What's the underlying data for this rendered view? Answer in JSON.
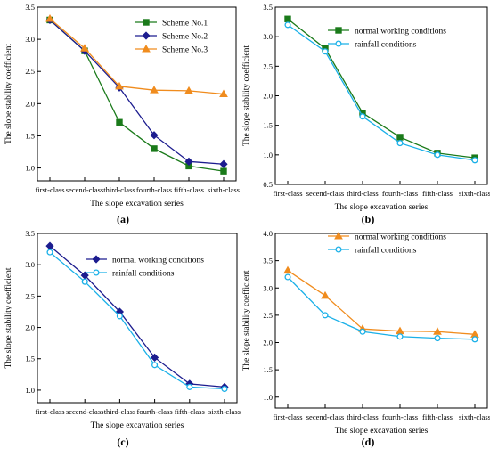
{
  "chart_data": [
    {
      "panel_label": "(a)",
      "type": "line",
      "xlabel": "The slope excavation series",
      "ylabel": "The slope stability coefficient",
      "categories": [
        "first-class",
        "secend-class",
        "third-class",
        "fourth-class",
        "fifth-class",
        "sixth-class"
      ],
      "ylim": [
        0.8,
        3.5
      ],
      "yticks": [
        "1.0",
        "1.5",
        "2.0",
        "2.5",
        "3.0",
        "3.5"
      ],
      "ytick_values": [
        1.0,
        1.5,
        2.0,
        2.5,
        3.0,
        3.5
      ],
      "grid": false,
      "legend_position": "top-right",
      "series": [
        {
          "name": "Scheme No.1",
          "color": "#1a7a1a",
          "marker": "square",
          "values": [
            3.3,
            2.82,
            1.71,
            1.3,
            1.03,
            0.95
          ]
        },
        {
          "name": "Scheme No.2",
          "color": "#1c1c8f",
          "marker": "diamond",
          "values": [
            3.3,
            2.82,
            2.25,
            1.51,
            1.1,
            1.06
          ]
        },
        {
          "name": "Scheme No.3",
          "color": "#f08c1e",
          "marker": "triangle",
          "values": [
            3.32,
            2.86,
            2.27,
            2.21,
            2.2,
            2.15
          ]
        }
      ]
    },
    {
      "panel_label": "(b)",
      "type": "line",
      "xlabel": "The slope excavation series",
      "ylabel": "The slope stability coefficient",
      "categories": [
        "first-class",
        "secend-class",
        "third-class",
        "fourth-class",
        "fifth-class",
        "sixth-class"
      ],
      "ylim": [
        0.5,
        3.5
      ],
      "yticks": [
        "0.5",
        "1.0",
        "1.5",
        "2.0",
        "2.5",
        "3.0",
        "3.5"
      ],
      "ytick_values": [
        0.5,
        1.0,
        1.5,
        2.0,
        2.5,
        3.0,
        3.5
      ],
      "grid": false,
      "legend_position": "top-right",
      "series": [
        {
          "name": "normal working conditions",
          "color": "#1a7a1a",
          "marker": "square",
          "values": [
            3.3,
            2.8,
            1.71,
            1.3,
            1.03,
            0.95
          ]
        },
        {
          "name": "rainfall conditions",
          "color": "#1ab0e8",
          "marker": "circle",
          "values": [
            3.2,
            2.75,
            1.65,
            1.2,
            1.0,
            0.91
          ]
        }
      ]
    },
    {
      "panel_label": "(c)",
      "type": "line",
      "xlabel": "The slope excavation series",
      "ylabel": "The slope stability coefficient",
      "categories": [
        "first-class",
        "secend-class",
        "third-class",
        "fourth-class",
        "fifth-class",
        "sixth-class"
      ],
      "ylim": [
        0.8,
        3.5
      ],
      "yticks": [
        "1.0",
        "1.5",
        "2.0",
        "2.5",
        "3.0",
        "3.5"
      ],
      "ytick_values": [
        1.0,
        1.5,
        2.0,
        2.5,
        3.0,
        3.5
      ],
      "grid": false,
      "legend_position": "top-right",
      "series": [
        {
          "name": "normal working conditions",
          "color": "#1c1c8f",
          "marker": "diamond",
          "values": [
            3.3,
            2.83,
            2.25,
            1.52,
            1.1,
            1.05
          ]
        },
        {
          "name": "rainfall conditions",
          "color": "#1ab0e8",
          "marker": "circle",
          "values": [
            3.2,
            2.73,
            2.18,
            1.4,
            1.05,
            1.02
          ]
        }
      ]
    },
    {
      "panel_label": "(d)",
      "type": "line",
      "xlabel": "The slope excavation series",
      "ylabel": "The slope stability coefficient",
      "categories": [
        "first-class",
        "secend-class",
        "third-class",
        "fourth-class",
        "fifth-class",
        "sixth-class"
      ],
      "ylim": [
        0.8,
        4.0
      ],
      "yticks": [
        "1.0",
        "1.5",
        "2.0",
        "2.5",
        "3.0",
        "3.5",
        "4.0"
      ],
      "ytick_values": [
        1.0,
        1.5,
        2.0,
        2.5,
        3.0,
        3.5,
        4.0
      ],
      "grid": false,
      "legend_position": "top-right",
      "series": [
        {
          "name": "normal working conditions",
          "color": "#f08c1e",
          "marker": "triangle",
          "values": [
            3.32,
            2.86,
            2.25,
            2.21,
            2.2,
            2.15
          ]
        },
        {
          "name": "rainfall conditions",
          "color": "#1ab0e8",
          "marker": "circle",
          "values": [
            3.2,
            2.5,
            2.2,
            2.11,
            2.08,
            2.06
          ]
        }
      ]
    }
  ]
}
